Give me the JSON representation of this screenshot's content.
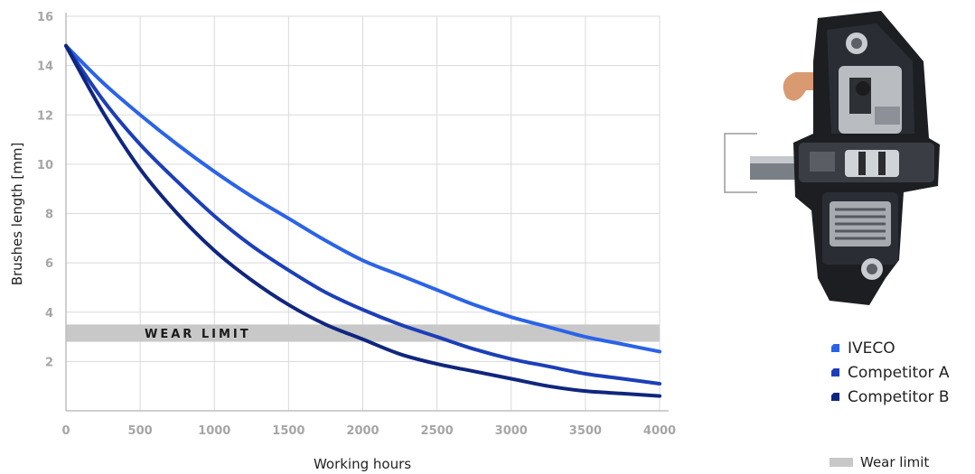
{
  "chart_data": {
    "type": "line",
    "xlabel": "Working hours",
    "ylabel": "Brushes length [mm]",
    "xlim": [
      0,
      4000
    ],
    "ylim": [
      0,
      16
    ],
    "xticks": [
      "0",
      "500",
      "1000",
      "1500",
      "2000",
      "2500",
      "3000",
      "3500",
      "4000"
    ],
    "yticks": [
      "2",
      "4",
      "6",
      "8",
      "10",
      "12",
      "14",
      "16"
    ],
    "grid": true,
    "series": [
      {
        "name": "IVECO",
        "color": "#2b63e8",
        "x": [
          0,
          250,
          500,
          750,
          1000,
          1250,
          1500,
          1750,
          2000,
          2250,
          2500,
          2750,
          3000,
          3250,
          3500,
          3750,
          4000
        ],
        "y": [
          14.8,
          13.3,
          12.0,
          10.8,
          9.7,
          8.7,
          7.8,
          6.9,
          6.1,
          5.5,
          4.9,
          4.3,
          3.8,
          3.4,
          3.0,
          2.7,
          2.4
        ]
      },
      {
        "name": "Competitor A",
        "color": "#1c3fb8",
        "x": [
          0,
          250,
          500,
          750,
          1000,
          1250,
          1500,
          1750,
          2000,
          2250,
          2500,
          2750,
          3000,
          3250,
          3500,
          3750,
          4000
        ],
        "y": [
          14.8,
          12.6,
          10.8,
          9.3,
          7.9,
          6.7,
          5.7,
          4.8,
          4.1,
          3.5,
          3.0,
          2.5,
          2.1,
          1.8,
          1.5,
          1.3,
          1.1
        ]
      },
      {
        "name": "Competitor B",
        "color": "#10267e",
        "x": [
          0,
          250,
          500,
          750,
          1000,
          1250,
          1500,
          1750,
          2000,
          2250,
          2500,
          2750,
          3000,
          3250,
          3500,
          3750,
          4000
        ],
        "y": [
          14.8,
          12.1,
          9.8,
          8.0,
          6.5,
          5.3,
          4.3,
          3.5,
          2.9,
          2.3,
          1.9,
          1.6,
          1.3,
          1.0,
          0.8,
          0.7,
          0.6
        ]
      }
    ],
    "wear_limit": {
      "label": "WEAR LIMIT",
      "y_range": [
        2.8,
        3.5
      ],
      "color": "#c8c8c8"
    }
  },
  "legend": {
    "items": [
      {
        "label": "IVECO",
        "color": "#2b63e8"
      },
      {
        "label": "Competitor A",
        "color": "#1c3fb8"
      },
      {
        "label": "Competitor B",
        "color": "#10267e"
      }
    ],
    "wear_label": "Wear limit"
  },
  "image": {
    "icon": "voltage-regulator-product-photo"
  }
}
